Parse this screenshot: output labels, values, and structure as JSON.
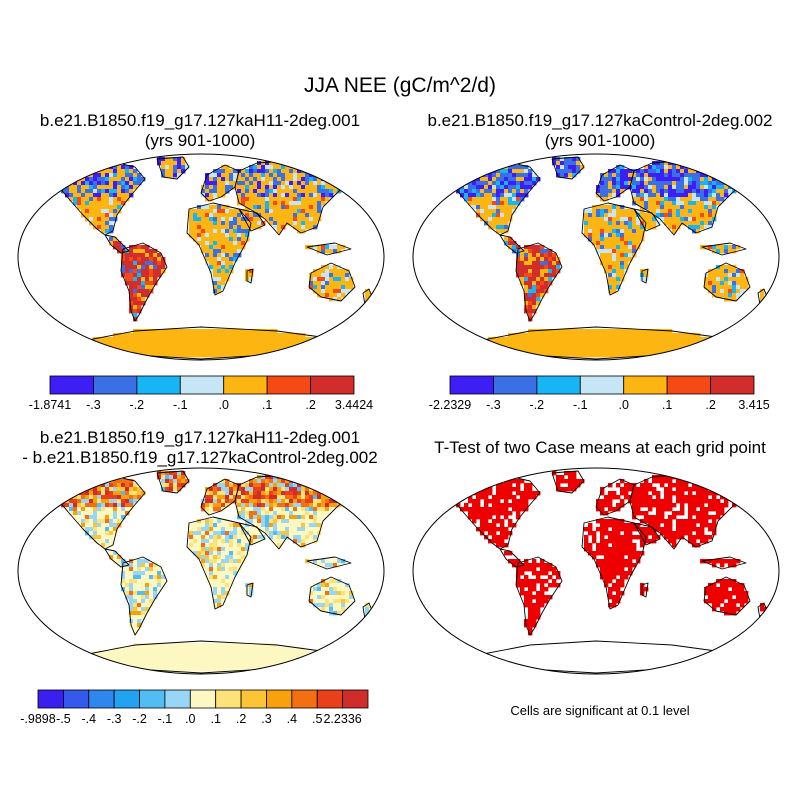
{
  "title": "JJA NEE (gC/m^2/d)",
  "panels": [
    {
      "id": "p1",
      "title_line1": "b.e21.B1850.f19_g17.127kaH11-2deg.001",
      "title_line2": "(yrs 901-1000)",
      "kind": "field-a"
    },
    {
      "id": "p2",
      "title_line1": "b.e21.B1850.f19_g17.127kaControl-2deg.002",
      "title_line2": "(yrs 901-1000)",
      "kind": "field-b"
    },
    {
      "id": "p3",
      "title_line1": "b.e21.B1850.f19_g17.127kaH11-2deg.001",
      "title_line2": "- b.e21.B1850.f19_g17.127kaControl-2deg.002",
      "kind": "difference"
    },
    {
      "id": "p4",
      "title_line1": "T-Test of two Case means at each grid point",
      "title_line2": "",
      "kind": "significance"
    }
  ],
  "colorbars": {
    "cb1": {
      "labels": [
        "-1.8741",
        "-.3",
        "-.2",
        "-.1",
        ".0",
        ".1",
        ".2",
        "3.4424"
      ],
      "colors": [
        "#3d1ef5",
        "#3a6fe6",
        "#18b5f5",
        "#c6e6f6",
        "#fdb512",
        "#f64a14",
        "#d22d2a"
      ]
    },
    "cb2": {
      "labels": [
        "-2.2329",
        "-.3",
        "-.2",
        "-.1",
        ".0",
        ".1",
        ".2",
        "3.415"
      ],
      "colors": [
        "#3d1ef5",
        "#3a6fe6",
        "#18b5f5",
        "#c6e6f6",
        "#fdb512",
        "#f64a14",
        "#d22d2a"
      ]
    },
    "cb3": {
      "labels": [
        "-.9898",
        "-.5",
        "-.4",
        "-.3",
        "-.2",
        "-.1",
        ".0",
        ".1",
        ".2",
        ".3",
        ".4",
        ".5",
        "2.2336"
      ],
      "colors": [
        "#3a1ff0",
        "#3459ec",
        "#2f86ee",
        "#22a3f2",
        "#52bdf2",
        "#97d6f4",
        "#fdf8c2",
        "#fde27a",
        "#fcc437",
        "#f9a10b",
        "#f46f12",
        "#ea3f1b",
        "#d02c2b"
      ]
    }
  },
  "significance_note": "Cells are significant at 0.1 level",
  "colors": {
    "land_outline": "#000000",
    "significance": "#ee0000"
  }
}
